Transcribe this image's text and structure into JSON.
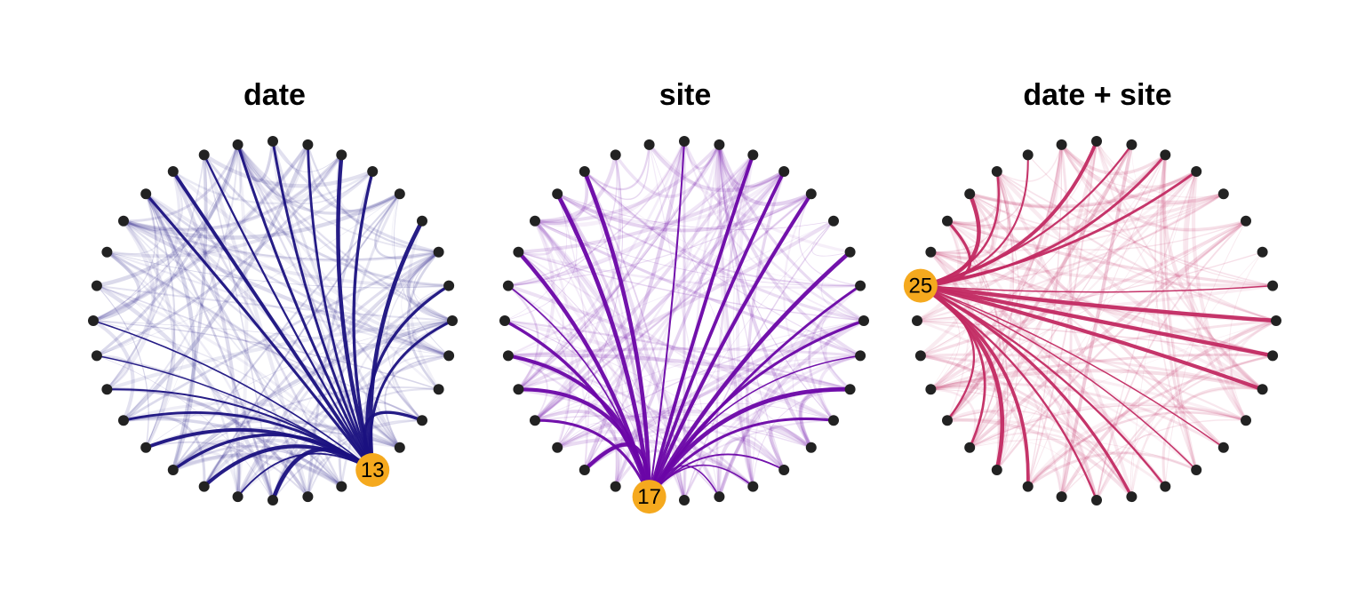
{
  "colors": {
    "node": "#222222",
    "highlight": "#f5a91e",
    "label": "#000000"
  },
  "panels": [
    {
      "title": "date",
      "edge_color": "#1a1180",
      "highlight_node": "13",
      "highlight_node_index": 13,
      "edge_seed": 11
    },
    {
      "title": "site",
      "edge_color": "#6a05a6",
      "highlight_node": "17",
      "highlight_node_index": 17,
      "edge_seed": 23
    },
    {
      "title": "date + site",
      "edge_color": "#c22a62",
      "highlight_node": "25",
      "highlight_node_index": 25,
      "edge_seed": 37
    }
  ]
}
